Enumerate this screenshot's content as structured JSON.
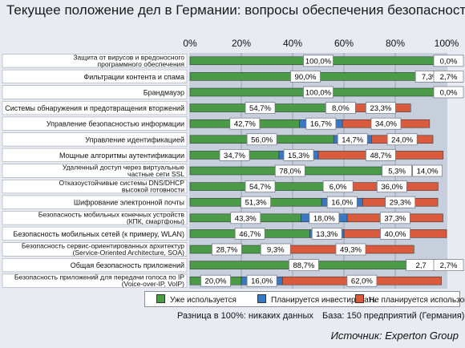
{
  "title": "Текущее положение дел в Германии: вопросы обеспечения безопасности",
  "chart_data": {
    "type": "bar",
    "orientation": "horizontal",
    "stacked": true,
    "xlim": [
      0,
      100
    ],
    "x_tick_labels": [
      "0%",
      "20%",
      "40%",
      "60%",
      "80%",
      "100%"
    ],
    "categories": [
      [
        "Защита от вирусов и вредоносного",
        "программного обеспечения"
      ],
      [
        "Фильтрации контента и спама"
      ],
      [
        "Брандмауэр"
      ],
      [
        "Системы обнаружения и предотвращения вторжений"
      ],
      [
        "Управление безопасностью информации"
      ],
      [
        "Управление идентификацией"
      ],
      [
        "Мощные алгоритмы аутентификации"
      ],
      [
        "Удаленный доступ через виртуальные",
        "частные сети SSL"
      ],
      [
        "Отказоустойчивые системы DNS/DHCP",
        "высокой готовности"
      ],
      [
        "Шифрование электронной почты"
      ],
      [
        "Безопасность мобильных конечных устройств",
        "(КПК, смартфоны)"
      ],
      [
        "Безопасность мобильных сетей (к примеру, WLAN)"
      ],
      [
        "Безопасность сервис-ориентированных архитектур",
        "(Service-Oriented Architecture, SOA)"
      ],
      [
        "Общая безопасность приложений"
      ],
      [
        "Безопасность приложений для передачи голоса по IP",
        "(Voice-over-IP, VoIP)"
      ]
    ],
    "series": [
      {
        "name": "Уже используется",
        "color": "#4a9a47",
        "values": [
          100.0,
          90.0,
          100.0,
          54.7,
          42.7,
          56.0,
          34.7,
          78.0,
          54.7,
          51.3,
          43.3,
          46.7,
          28.7,
          88.7,
          20.0
        ],
        "labels": [
          "100,0%",
          "90,0%",
          "100,0%",
          "54,7%",
          "42,7%",
          "56,0%",
          "34,7%",
          "78,0%",
          "54,7%",
          "51,3%",
          "43,3%",
          "46,7%",
          "28,7%",
          "88,7%",
          "20,0%"
        ]
      },
      {
        "name": "Планируется инвестировать",
        "color": "#3b78c2",
        "values": [
          0.0,
          7.3,
          0.0,
          8.0,
          16.7,
          14.7,
          15.3,
          5.3,
          6.0,
          16.0,
          18.0,
          13.3,
          9.3,
          2.7,
          16.0
        ],
        "labels": [
          "",
          "7,3%",
          "",
          "8,0%",
          "16,7%",
          "14,7%",
          "15,3%",
          "5,3%",
          "6,0%",
          "16,0%",
          "18,0%",
          "13,3%",
          "9,3%",
          "2,7",
          "16,0%"
        ]
      },
      {
        "name": "Не планируется использовать",
        "color": "#d95a3c",
        "values": [
          0.0,
          2.7,
          0.0,
          23.3,
          34.0,
          24.0,
          48.7,
          14.0,
          36.0,
          29.3,
          37.3,
          40.0,
          49.3,
          2.7,
          62.0
        ],
        "labels": [
          "0,0%",
          "2,7%",
          "0,0%",
          "23,3%",
          "34,0%",
          "24,0%",
          "48,7%",
          "14,0%",
          "36,0%",
          "29,3%",
          "37,3%",
          "40,0%",
          "49,3%",
          "2,7%",
          "62,0%"
        ]
      }
    ]
  },
  "footnote_diff": "Разница в 100%: никаких данных",
  "footnote_base": "База: 150 предприятий (Германия)",
  "source": "Источник: Experton Group"
}
